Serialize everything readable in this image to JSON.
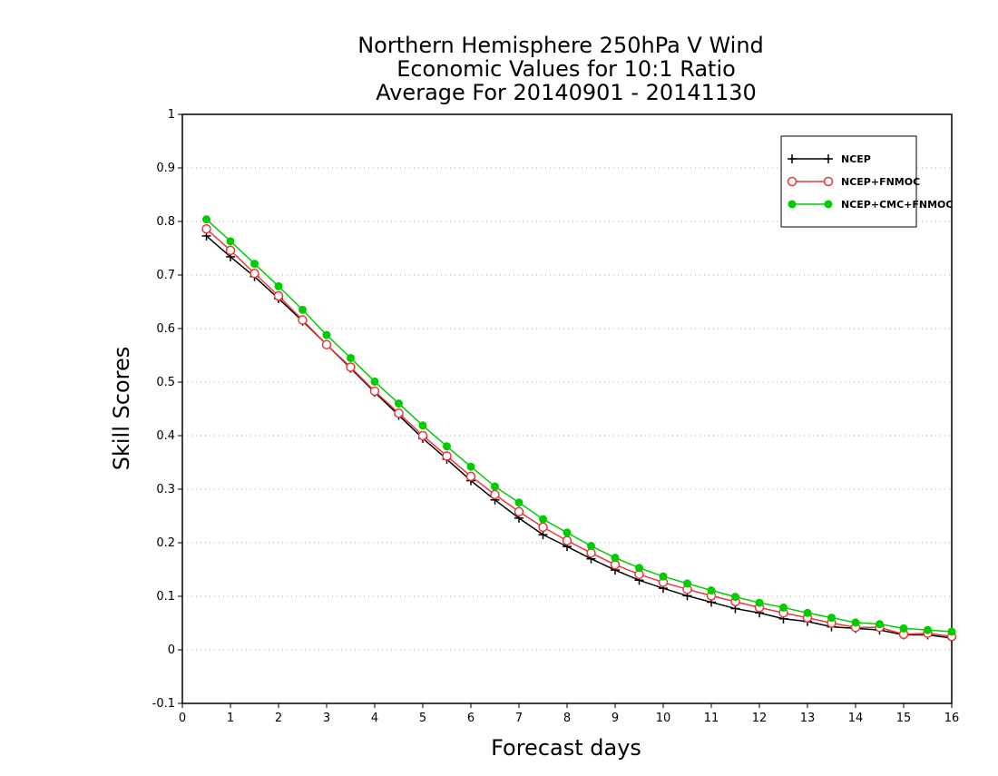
{
  "chart_data": {
    "type": "line",
    "title_lines": [
      "Northern Hemisphere 250hPa V Wind",
      "Economic Values for 10:1 Ratio",
      "Average For 20140901 - 20141130"
    ],
    "xlabel": "Forecast days",
    "ylabel": "Skill Scores",
    "xlim": [
      0,
      16
    ],
    "ylim": [
      -0.1,
      1
    ],
    "xticks": [
      0,
      1,
      2,
      3,
      4,
      5,
      6,
      7,
      8,
      9,
      10,
      11,
      12,
      13,
      14,
      15,
      16
    ],
    "yticks": [
      -0.1,
      0,
      0.1,
      0.2,
      0.3,
      0.4,
      0.5,
      0.6,
      0.7,
      0.8,
      0.9,
      1
    ],
    "ytick_labels": [
      "-0.1",
      "0",
      "0.1",
      "0.2",
      "0.3",
      "0.4",
      "0.5",
      "0.6",
      "0.7",
      "0.8",
      "0.9",
      "1"
    ],
    "grid": "horizontal dotted",
    "legend_position": "top-right",
    "x": [
      0.5,
      1,
      1.5,
      2,
      2.5,
      3,
      3.5,
      4,
      4.5,
      5,
      5.5,
      6,
      6.5,
      7,
      7.5,
      8,
      8.5,
      9,
      9.5,
      10,
      10.5,
      11,
      11.5,
      12,
      12.5,
      13,
      13.5,
      14,
      14.5,
      15,
      15.5,
      16
    ],
    "series": [
      {
        "name": "NCEP",
        "color": "#000000",
        "marker": "plus",
        "values": [
          0.773,
          0.734,
          0.697,
          0.656,
          0.614,
          0.57,
          0.526,
          0.481,
          0.438,
          0.395,
          0.356,
          0.316,
          0.28,
          0.246,
          0.215,
          0.193,
          0.17,
          0.149,
          0.13,
          0.115,
          0.101,
          0.089,
          0.077,
          0.069,
          0.058,
          0.053,
          0.043,
          0.04,
          0.037,
          0.028,
          0.028,
          0.022
        ]
      },
      {
        "name": "NCEP+FNMOC",
        "color": "#e8393a",
        "marker": "open-circle",
        "values": [
          0.786,
          0.746,
          0.703,
          0.661,
          0.616,
          0.57,
          0.528,
          0.483,
          0.442,
          0.4,
          0.362,
          0.324,
          0.29,
          0.258,
          0.229,
          0.204,
          0.181,
          0.159,
          0.141,
          0.126,
          0.113,
          0.101,
          0.09,
          0.079,
          0.069,
          0.06,
          0.05,
          0.042,
          0.042,
          0.029,
          0.031,
          0.025
        ]
      },
      {
        "name": "NCEP+CMC+FNMOC",
        "color": "#00cc00",
        "marker": "filled-circle",
        "values": [
          0.804,
          0.763,
          0.721,
          0.679,
          0.635,
          0.588,
          0.545,
          0.501,
          0.46,
          0.419,
          0.38,
          0.342,
          0.305,
          0.275,
          0.244,
          0.219,
          0.194,
          0.172,
          0.153,
          0.137,
          0.124,
          0.111,
          0.099,
          0.088,
          0.079,
          0.069,
          0.06,
          0.051,
          0.048,
          0.04,
          0.037,
          0.034
        ]
      }
    ]
  }
}
